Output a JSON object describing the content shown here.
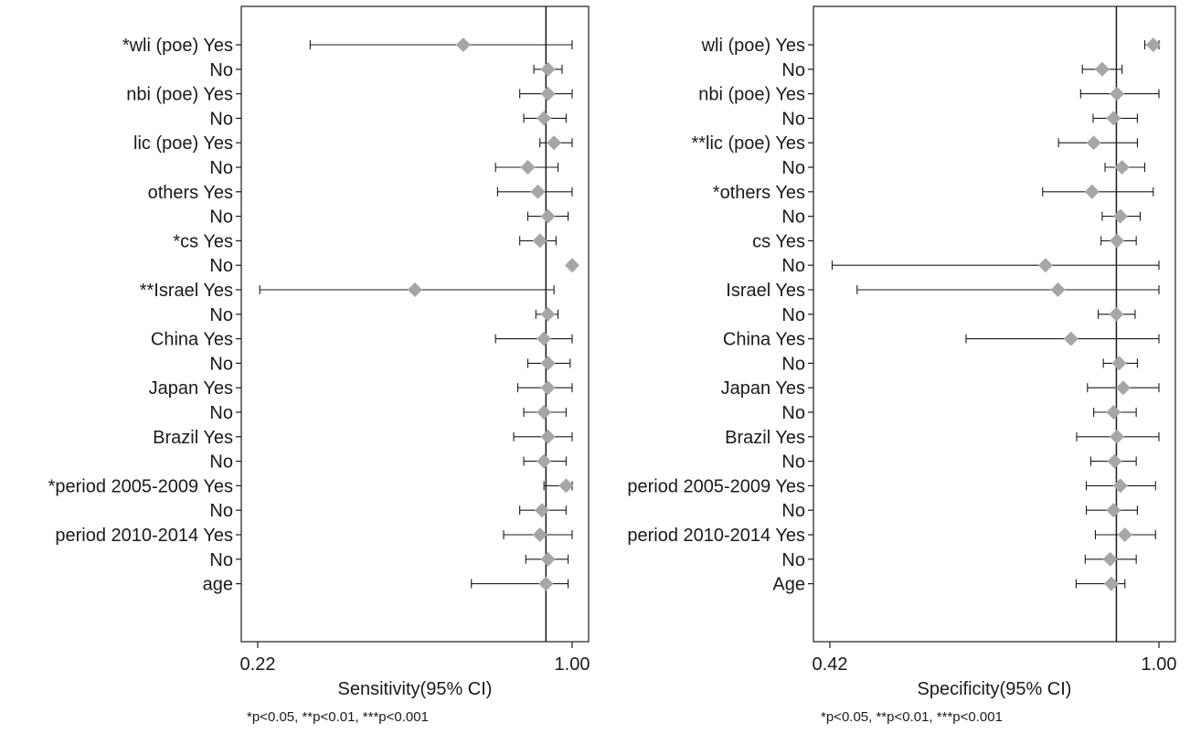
{
  "colors": {
    "marker": "#a6a6a6",
    "line": "#1a1a1a",
    "frame": "#1a1a1a"
  },
  "chart_data": [
    {
      "type": "forest",
      "xlabel": "Sensitivity(95% CI)",
      "xlim": [
        0.22,
        1.0
      ],
      "xticks": [
        "0.22",
        "1.00"
      ],
      "reference_line": 0.935,
      "footnote": "*p<0.05, **p<0.01, ***p<0.001",
      "rows": [
        {
          "label": "*wli (poe) Yes",
          "est": 0.73,
          "lo": 0.35,
          "hi": 1.0
        },
        {
          "label": "No",
          "est": 0.94,
          "lo": 0.905,
          "hi": 0.975
        },
        {
          "label": "nbi (poe) Yes",
          "est": 0.94,
          "lo": 0.87,
          "hi": 1.0
        },
        {
          "label": "No",
          "est": 0.93,
          "lo": 0.88,
          "hi": 0.985
        },
        {
          "label": "lic (poe) Yes",
          "est": 0.955,
          "lo": 0.92,
          "hi": 1.0
        },
        {
          "label": "No",
          "est": 0.89,
          "lo": 0.81,
          "hi": 0.965
        },
        {
          "label": "others Yes",
          "est": 0.915,
          "lo": 0.815,
          "hi": 1.0
        },
        {
          "label": "No",
          "est": 0.94,
          "lo": 0.89,
          "hi": 0.99
        },
        {
          "label": "*cs Yes",
          "est": 0.92,
          "lo": 0.87,
          "hi": 0.96
        },
        {
          "label": "No",
          "est": 1.0,
          "lo": 1.0,
          "hi": 1.0
        },
        {
          "label": "**Israel Yes",
          "est": 0.61,
          "lo": 0.225,
          "hi": 0.955
        },
        {
          "label": "No",
          "est": 0.94,
          "lo": 0.91,
          "hi": 0.965
        },
        {
          "label": "China Yes",
          "est": 0.93,
          "lo": 0.81,
          "hi": 1.0
        },
        {
          "label": "No",
          "est": 0.94,
          "lo": 0.89,
          "hi": 0.995
        },
        {
          "label": "Japan Yes",
          "est": 0.94,
          "lo": 0.865,
          "hi": 1.0
        },
        {
          "label": "No",
          "est": 0.93,
          "lo": 0.88,
          "hi": 0.985
        },
        {
          "label": "Brazil Yes",
          "est": 0.94,
          "lo": 0.855,
          "hi": 1.0
        },
        {
          "label": "No",
          "est": 0.93,
          "lo": 0.88,
          "hi": 0.985
        },
        {
          "label": "*period 2005-2009 Yes",
          "est": 0.985,
          "lo": 0.93,
          "hi": 1.0
        },
        {
          "label": "No",
          "est": 0.925,
          "lo": 0.87,
          "hi": 0.985
        },
        {
          "label": "period 2010-2014 Yes",
          "est": 0.92,
          "lo": 0.83,
          "hi": 1.0
        },
        {
          "label": "No",
          "est": 0.94,
          "lo": 0.885,
          "hi": 0.99
        },
        {
          "label": "age",
          "est": 0.935,
          "lo": 0.75,
          "hi": 0.99
        }
      ]
    },
    {
      "type": "forest",
      "xlabel": "Specificity(95% CI)",
      "xlim": [
        0.42,
        1.0
      ],
      "xticks": [
        "0.42",
        "1.00"
      ],
      "reference_line": 0.925,
      "footnote": "*p<0.05, **p<0.01, ***p<0.001",
      "rows": [
        {
          "label": "wli (poe) Yes",
          "est": 0.99,
          "lo": 0.975,
          "hi": 1.0
        },
        {
          "label": "No",
          "est": 0.9,
          "lo": 0.865,
          "hi": 0.935
        },
        {
          "label": "nbi (poe) Yes",
          "est": 0.926,
          "lo": 0.862,
          "hi": 1.0
        },
        {
          "label": "No",
          "est": 0.92,
          "lo": 0.884,
          "hi": 0.962
        },
        {
          "label": "**lic (poe) Yes",
          "est": 0.885,
          "lo": 0.823,
          "hi": 0.962
        },
        {
          "label": "No",
          "est": 0.935,
          "lo": 0.905,
          "hi": 0.975
        },
        {
          "label": "*others Yes",
          "est": 0.882,
          "lo": 0.795,
          "hi": 0.99
        },
        {
          "label": "No",
          "est": 0.932,
          "lo": 0.9,
          "hi": 0.967
        },
        {
          "label": "cs Yes",
          "est": 0.926,
          "lo": 0.898,
          "hi": 0.96
        },
        {
          "label": "No",
          "est": 0.8,
          "lo": 0.424,
          "hi": 1.0
        },
        {
          "label": "Israel Yes",
          "est": 0.822,
          "lo": 0.468,
          "hi": 1.0
        },
        {
          "label": "No",
          "est": 0.925,
          "lo": 0.893,
          "hi": 0.958
        },
        {
          "label": "China Yes",
          "est": 0.845,
          "lo": 0.66,
          "hi": 1.0
        },
        {
          "label": "No",
          "est": 0.93,
          "lo": 0.902,
          "hi": 0.962
        },
        {
          "label": "Japan Yes",
          "est": 0.937,
          "lo": 0.874,
          "hi": 1.0
        },
        {
          "label": "No",
          "est": 0.92,
          "lo": 0.885,
          "hi": 0.96
        },
        {
          "label": "Brazil Yes",
          "est": 0.926,
          "lo": 0.855,
          "hi": 1.0
        },
        {
          "label": "No",
          "est": 0.922,
          "lo": 0.88,
          "hi": 0.96
        },
        {
          "label": "period 2005-2009 Yes",
          "est": 0.932,
          "lo": 0.872,
          "hi": 0.994
        },
        {
          "label": "No",
          "est": 0.92,
          "lo": 0.872,
          "hi": 0.962
        },
        {
          "label": "period 2010-2014 Yes",
          "est": 0.94,
          "lo": 0.888,
          "hi": 0.994
        },
        {
          "label": "No",
          "est": 0.914,
          "lo": 0.87,
          "hi": 0.96
        },
        {
          "label": "Age",
          "est": 0.916,
          "lo": 0.854,
          "hi": 0.94
        }
      ]
    }
  ]
}
